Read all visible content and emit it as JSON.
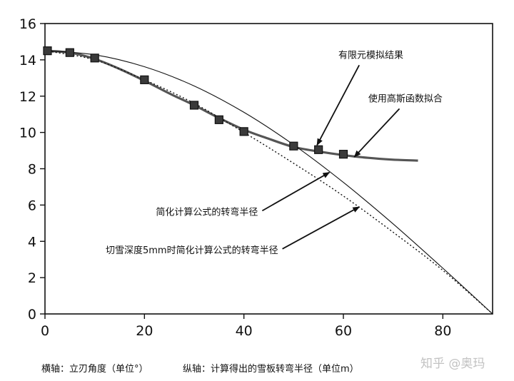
{
  "chart_data": {
    "type": "line",
    "title": "",
    "xlabel": "横轴：立刃角度（单位°）",
    "ylabel": "纵轴：计算得出的雪板转弯半径（单位m）",
    "xlim": [
      0,
      90
    ],
    "ylim": [
      0,
      16
    ],
    "x_ticks": [
      0,
      20,
      40,
      60,
      80
    ],
    "y_ticks": [
      0,
      2,
      4,
      6,
      8,
      10,
      12,
      14,
      16
    ],
    "grid": false,
    "legend": "none",
    "series": [
      {
        "name": "有限元模拟结果",
        "style": "markers",
        "x": [
          0.5,
          5,
          10,
          20,
          30,
          35,
          40,
          50,
          55,
          60
        ],
        "y": [
          14.5,
          14.4,
          14.1,
          12.9,
          11.5,
          10.7,
          10.05,
          9.25,
          9.05,
          8.8
        ]
      },
      {
        "name": "使用高斯函数拟合",
        "style": "thick-line",
        "x": [
          0,
          5,
          10,
          15,
          20,
          25,
          30,
          35,
          40,
          45,
          50,
          55,
          60,
          65,
          70,
          75
        ],
        "y": [
          14.5,
          14.4,
          14.05,
          13.5,
          12.85,
          12.15,
          11.5,
          10.8,
          10.15,
          9.65,
          9.2,
          8.95,
          8.75,
          8.6,
          8.5,
          8.45
        ]
      },
      {
        "name": "简化计算公式的转弯半径",
        "style": "thin-line",
        "x": [
          0,
          10,
          20,
          30,
          40,
          50,
          60,
          70,
          80,
          90
        ],
        "y": [
          14.5,
          14.28,
          13.62,
          12.56,
          11.11,
          9.32,
          7.25,
          4.96,
          2.52,
          0
        ]
      },
      {
        "name": "切雪深度5mm时简化计算公式的转弯半径",
        "style": "dotted-line",
        "x": [
          0,
          10,
          20,
          30,
          40,
          50,
          60,
          70,
          80,
          90
        ],
        "y": [
          14.5,
          14.0,
          12.9,
          11.6,
          10.0,
          8.3,
          6.5,
          4.5,
          2.4,
          0
        ]
      }
    ],
    "annotations": [
      {
        "text": "有限元模拟结果",
        "label_x": 59,
        "label_y": 14.1,
        "arrow_to": [
          54.7,
          9.3
        ]
      },
      {
        "text": "使用高斯函数拟合",
        "label_x": 65,
        "label_y": 11.7,
        "arrow_to": [
          62.2,
          8.65
        ]
      },
      {
        "text": "简化计算公式的转弯半径",
        "label_x": 22.3,
        "label_y": 5.45,
        "arrow_to": [
          57.2,
          7.8
        ]
      },
      {
        "text": "切雪深度5mm时简化计算公式的转弯半径",
        "label_x": 12.2,
        "label_y": 3.35,
        "arrow_to": [
          63.2,
          5.9
        ]
      }
    ]
  },
  "watermark": "知乎 @奥玛"
}
